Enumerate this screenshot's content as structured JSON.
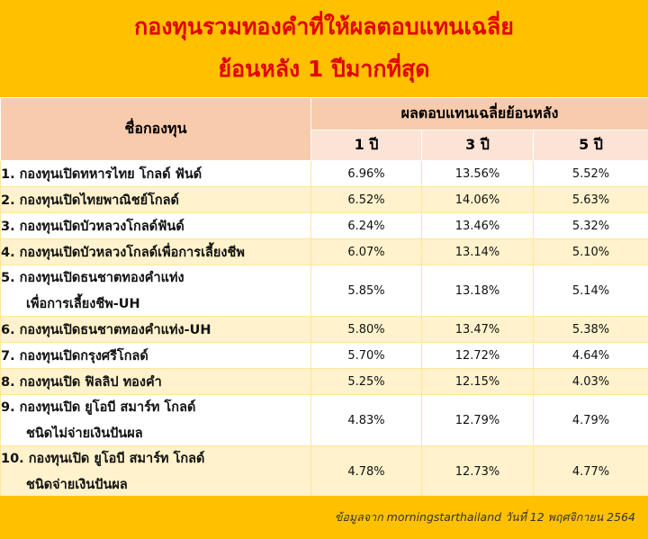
{
  "title": {
    "line1": "กองทุนรวมทองคำที่ให้ผลตอบแทนเฉลี่ย",
    "line2": "ย้อนหลัง 1 ปีมากที่สุด"
  },
  "table": {
    "name_header": "ชื่อกองทุน",
    "group_header": "ผลตอบแทนเฉลี่ยย้อนหลัง",
    "period_headers": [
      "1 ปี",
      "3 ปี",
      "5 ปี"
    ],
    "rows": [
      {
        "name": "1. กองทุนเปิดทหารไทย โกลด์ ฟันด์",
        "name2": "",
        "y1": "6.96%",
        "y3": "13.56%",
        "y5": "5.52%"
      },
      {
        "name": "2. กองทุนเปิดไทยพาณิชย์โกลด์",
        "name2": "",
        "y1": "6.52%",
        "y3": "14.06%",
        "y5": "5.63%"
      },
      {
        "name": "3. กองทุนเปิดบัวหลวงโกลด์ฟันด์",
        "name2": "",
        "y1": "6.24%",
        "y3": "13.46%",
        "y5": "5.32%"
      },
      {
        "name": "4. กองทุนเปิดบัวหลวงโกลด์เพื่อการเลี้ยงชีพ",
        "name2": "",
        "y1": "6.07%",
        "y3": "13.14%",
        "y5": "5.10%"
      },
      {
        "name": "5. กองทุนเปิดธนชาตทองคำแท่ง",
        "name2": "เพื่อการเลี้ยงชีพ-UH",
        "y1": "5.85%",
        "y3": "13.18%",
        "y5": "5.14%"
      },
      {
        "name": "6. กองทุนเปิดธนชาตทองคำแท่ง-UH",
        "name2": "",
        "y1": "5.80%",
        "y3": "13.47%",
        "y5": "5.38%"
      },
      {
        "name": "7. กองทุนเปิดกรุงศรีโกลด์",
        "name2": "",
        "y1": "5.70%",
        "y3": "12.72%",
        "y5": "4.64%"
      },
      {
        "name": "8. กองทุนเปิด ฟิลลิป ทองคำ",
        "name2": "",
        "y1": "5.25%",
        "y3": "12.15%",
        "y5": "4.03%"
      },
      {
        "name": "9. กองทุนเปิด ยูโอบี สมาร์ท โกลด์",
        "name2": "ชนิดไม่จ่ายเงินปันผล",
        "y1": "4.83%",
        "y3": "12.79%",
        "y5": "4.79%"
      },
      {
        "name": "10. กองทุนเปิด ยูโอบี สมาร์ท โกลด์",
        "name2": "ชนิดจ่ายเงินปันผล",
        "y1": "4.78%",
        "y3": "12.73%",
        "y5": "4.77%"
      }
    ]
  },
  "footer": {
    "source": "ข้อมูลจาก morningstarthailand วันที่ 12 พฤศจิกายน 2564"
  },
  "colors": {
    "band": "#ffc000",
    "title_text": "#e00000",
    "header_bg": "#f8cbad",
    "stripe": "#fff2cc"
  }
}
